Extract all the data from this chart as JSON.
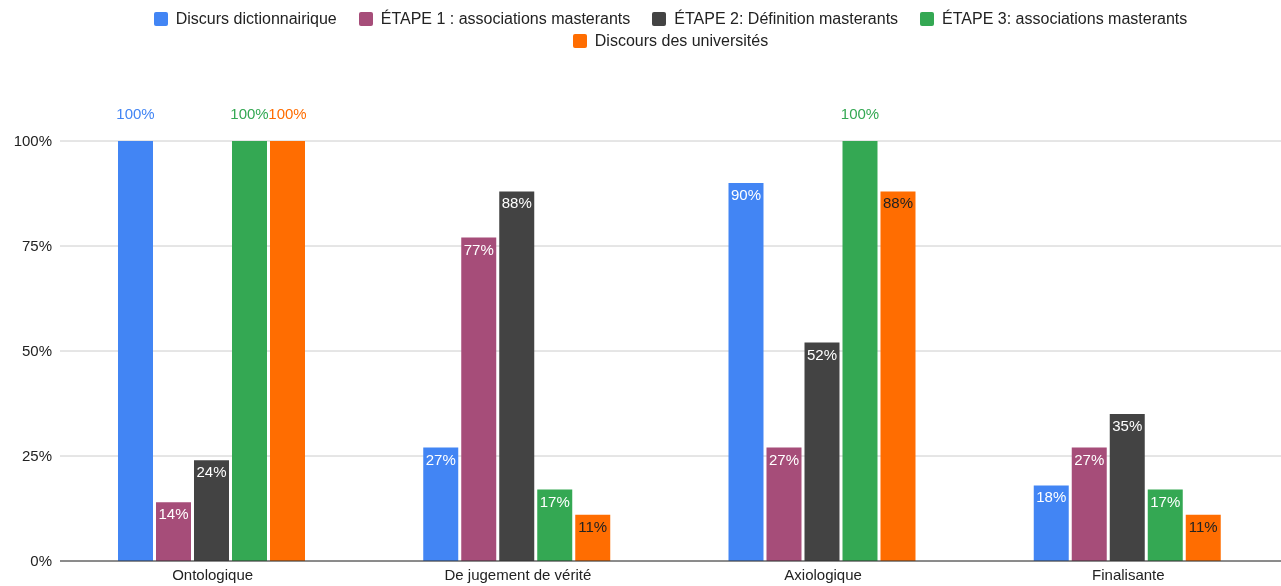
{
  "chart_data": {
    "type": "bar",
    "categories": [
      "Ontologique",
      "De jugement de vérité",
      "Axiologique",
      "Finalisante"
    ],
    "series": [
      {
        "name": "Discurs dictionnairique",
        "color": "#4285f4",
        "values": [
          100,
          27,
          90,
          18
        ],
        "value_labels": [
          "100%",
          "27%",
          "90%",
          "18%"
        ]
      },
      {
        "name": "ÉTAPE 1 : associations masterants",
        "color": "#a64d79",
        "values": [
          14,
          77,
          27,
          27
        ],
        "value_labels": [
          "14%",
          "77%",
          "27%",
          "27%"
        ]
      },
      {
        "name": "ÉTAPE 2: Définition masterants",
        "color": "#434343",
        "values": [
          24,
          88,
          52,
          35
        ],
        "value_labels": [
          "24%",
          "88%",
          "52%",
          "35%"
        ]
      },
      {
        "name": "ÉTAPE 3: associations masterants",
        "color": "#34a853",
        "values": [
          100,
          17,
          100,
          17
        ],
        "value_labels": [
          "100%",
          "17%",
          "100%",
          "17%"
        ]
      },
      {
        "name": "Discours des universités",
        "color": "#ff6d01",
        "values": [
          100,
          11,
          88,
          11
        ],
        "value_labels": [
          "100%",
          "11%",
          "88%",
          "11%"
        ]
      }
    ],
    "ylim": [
      0,
      100
    ],
    "yticks": [
      {
        "value": 0,
        "label": "0%"
      },
      {
        "value": 25,
        "label": "25%"
      },
      {
        "value": 50,
        "label": "50%"
      },
      {
        "value": 75,
        "label": "75%"
      },
      {
        "value": 100,
        "label": "100%"
      }
    ],
    "grid": "y",
    "legend": "top"
  }
}
